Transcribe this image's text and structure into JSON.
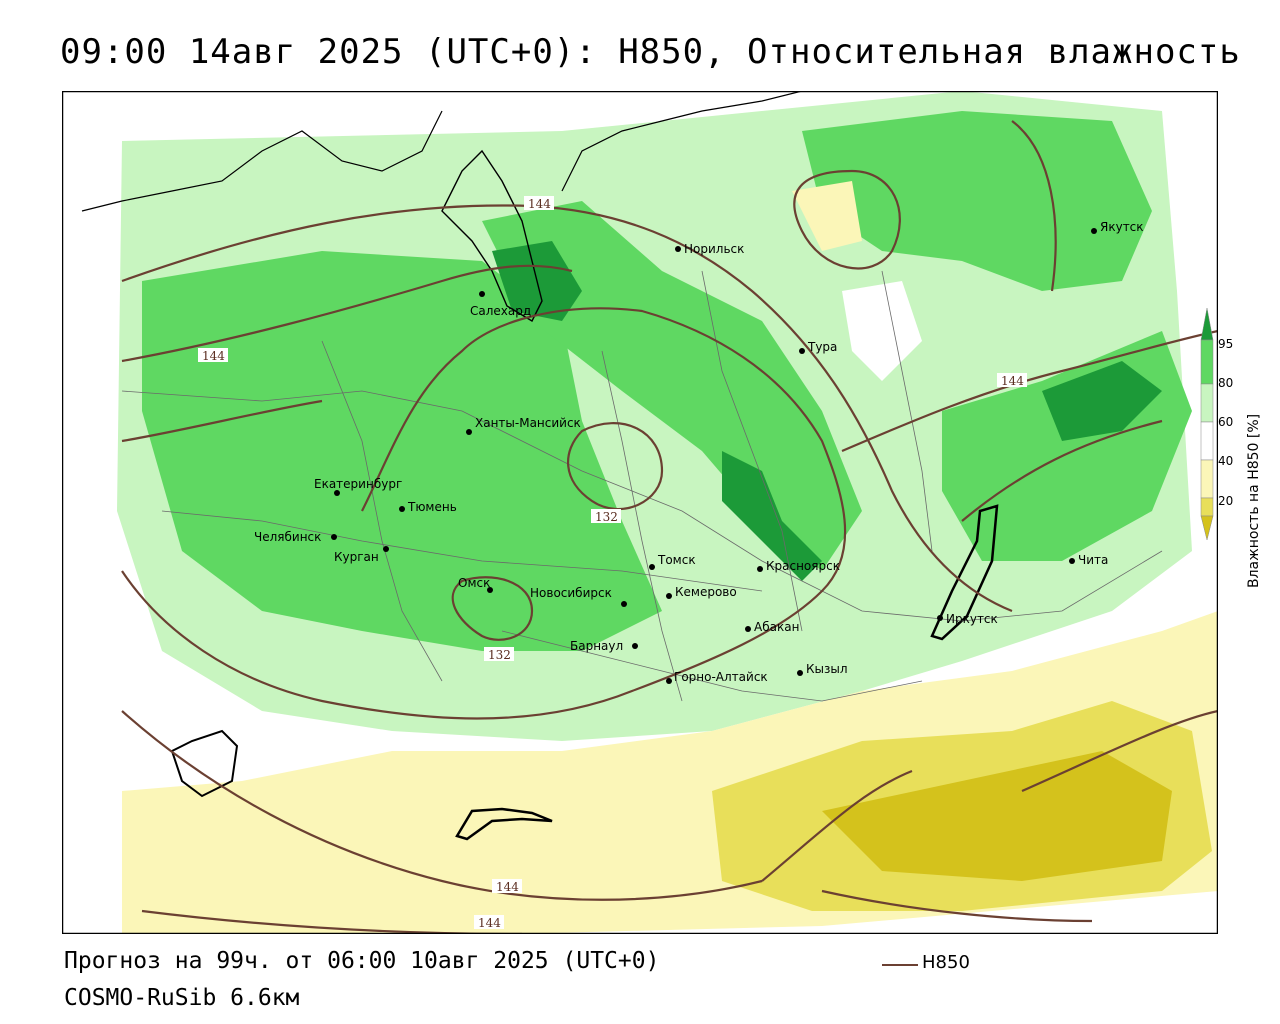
{
  "title": "09:00 14авг 2025 (UTC+0): H850, Относительная влажность",
  "footer": {
    "forecast": "Прогноз на 99ч. от 06:00 10авг 2025 (UTC+0)",
    "model": "COSMO-RuSib 6.6км"
  },
  "contour_legend": {
    "label": "H850",
    "color": "#6b4032"
  },
  "colorbar": {
    "title": "Влажность на H850 [%]",
    "ticks": [
      "20",
      "40",
      "60",
      "80",
      "95"
    ],
    "colors": {
      "very_dry": "#d4c21c",
      "dry": "#e8df5a",
      "low": "#fbf6b8",
      "mid": "#ffffff",
      "moist": "#c8f5c0",
      "wet": "#5fd862",
      "very_wet": "#1c9a38"
    }
  },
  "cities": [
    {
      "name": "Норильск"
    },
    {
      "name": "Якутск"
    },
    {
      "name": "Салехард"
    },
    {
      "name": "Тура"
    },
    {
      "name": "Ханты-Мансийск"
    },
    {
      "name": "Екатеринбург"
    },
    {
      "name": "Тюмень"
    },
    {
      "name": "Челябинск"
    },
    {
      "name": "Курган"
    },
    {
      "name": "Омск"
    },
    {
      "name": "Новосибирск"
    },
    {
      "name": "Томск"
    },
    {
      "name": "Кемерово"
    },
    {
      "name": "Красноярск"
    },
    {
      "name": "Барнаул"
    },
    {
      "name": "Абакан"
    },
    {
      "name": "Горно-Алтайск"
    },
    {
      "name": "Кызыл"
    },
    {
      "name": "Иркутск"
    },
    {
      "name": "Чита"
    }
  ],
  "isoline_labels": [
    "144",
    "144",
    "144",
    "132",
    "132",
    "144",
    "144"
  ]
}
